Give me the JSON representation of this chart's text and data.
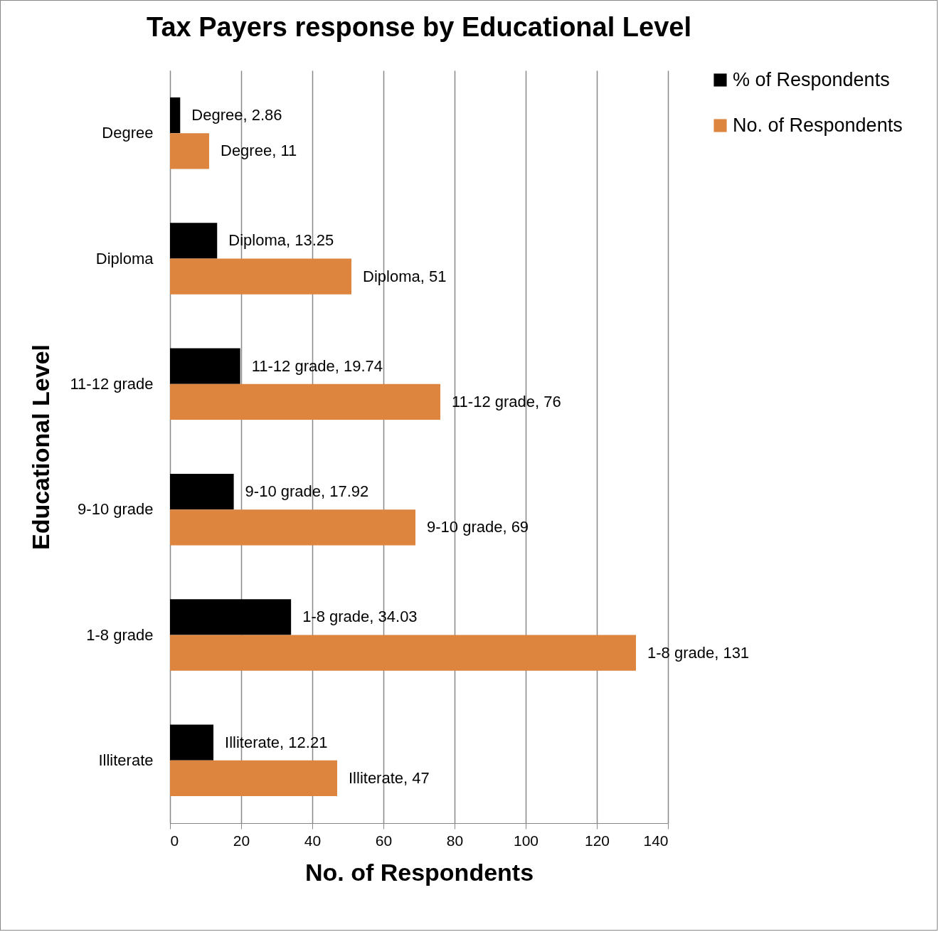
{
  "chart_data": {
    "type": "bar",
    "orientation": "horizontal",
    "title": "Tax Payers response by Educational Level",
    "xlabel": "No. of Respondents",
    "ylabel": "Educational Level",
    "categories": [
      "Degree",
      "Diploma",
      "11-12 grade",
      "9-10 grade",
      "1-8 grade",
      "Illiterate"
    ],
    "series": [
      {
        "name": "% of Respondents",
        "color": "#000000",
        "values": [
          2.86,
          13.25,
          19.74,
          17.92,
          34.03,
          12.21
        ],
        "value_labels": [
          "Degree, 2.86",
          "Diploma, 13.25",
          "11-12 grade, 19.74",
          "9-10 grade, 17.92",
          "1-8 grade, 34.03",
          "Illiterate, 12.21"
        ]
      },
      {
        "name": "No. of Respondents",
        "color": "#dd843f",
        "values": [
          11,
          51,
          76,
          69,
          131,
          47
        ],
        "value_labels": [
          "Degree, 11",
          "Diploma, 51",
          "11-12 grade, 76",
          "9-10 grade, 69",
          "1-8 grade, 131",
          "Illiterate, 47"
        ]
      }
    ],
    "xlim": [
      0,
      140
    ],
    "xticks": [
      0,
      20,
      40,
      60,
      80,
      100,
      120,
      140
    ],
    "grid": "x",
    "legend": "right"
  }
}
